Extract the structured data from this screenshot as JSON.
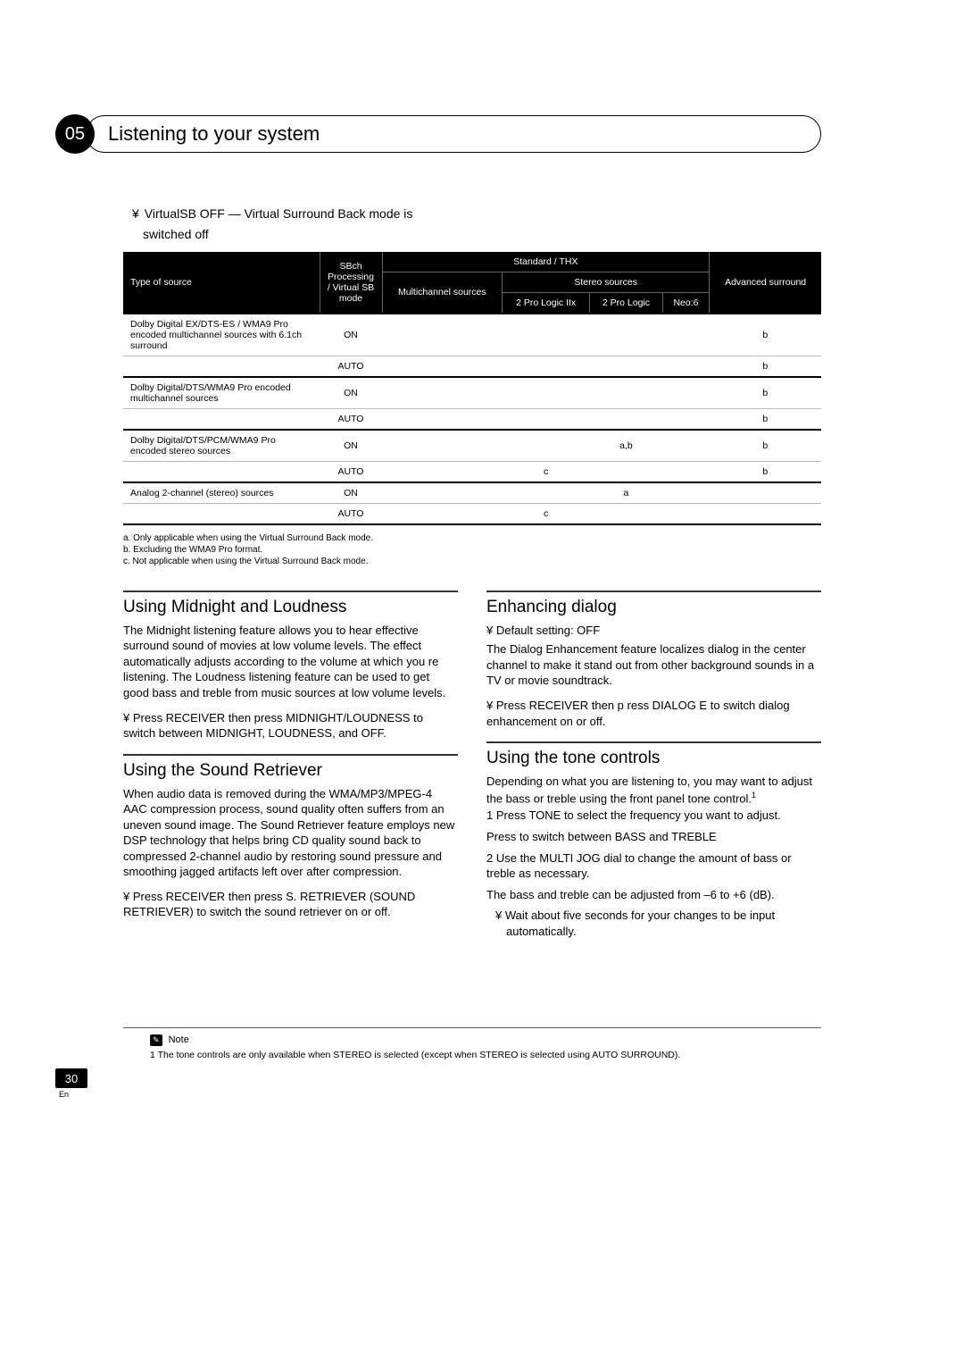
{
  "chapter": {
    "num": "05",
    "title": "Listening to your system"
  },
  "virtual_sb_off": {
    "bullet_sym": "¥",
    "line1": "VirtualSB OFF — Virtual Surround Back mode is",
    "line2": "switched off"
  },
  "table": {
    "headers": {
      "type": "Type of source",
      "sbch": "SBch Processing / Virtual SB mode",
      "std_thx": "Standard / THX",
      "multi": "Multichannel sources",
      "stereo": "Stereo sources",
      "pl2x": "2 Pro Logic IIx",
      "pl2": "2 Pro Logic",
      "neo6": "Neo:6",
      "adv": "Advanced surround"
    },
    "rows": [
      {
        "group_start": true,
        "src": "Dolby Digital EX/DTS-ES / WMA9 Pro encoded multichannel sources with 6.1ch surround",
        "mode": "ON",
        "multi": "",
        "pl2x": "",
        "pl2": "",
        "neo6": "",
        "adv": "b"
      },
      {
        "group_start": false,
        "src": "",
        "mode": "AUTO",
        "multi": "",
        "pl2x": "",
        "pl2": "",
        "neo6": "",
        "adv": "b"
      },
      {
        "group_start": true,
        "src": "Dolby Digital/DTS/WMA9 Pro encoded multichannel sources",
        "mode": "ON",
        "multi": "",
        "pl2x": "",
        "pl2": "",
        "neo6": "",
        "adv": "b"
      },
      {
        "group_start": false,
        "src": "",
        "mode": "AUTO",
        "multi": "",
        "pl2x": "",
        "pl2": "",
        "neo6": "",
        "adv": "b"
      },
      {
        "group_start": true,
        "src": "Dolby Digital/DTS/PCM/WMA9 Pro encoded stereo sources",
        "mode": "ON",
        "multi": "",
        "pl2x": "",
        "pl2": "a,b",
        "neo6": "",
        "adv": "b"
      },
      {
        "group_start": false,
        "src": "",
        "mode": "AUTO",
        "multi": "",
        "pl2x": "c",
        "pl2": "",
        "neo6": "",
        "adv": "b"
      },
      {
        "group_start": true,
        "src": "Analog 2-channel (stereo) sources",
        "mode": "ON",
        "multi": "",
        "pl2x": "",
        "pl2": "a",
        "neo6": "",
        "adv": ""
      },
      {
        "group_start": false,
        "src": "",
        "mode": "AUTO",
        "multi": "",
        "pl2x": "c",
        "pl2": "",
        "neo6": "",
        "adv": ""
      }
    ],
    "footnotes": {
      "a": "a. Only applicable when using the Virtual Surround Back mode.",
      "b": "b. Excluding the WMA9 Pro format.",
      "c": "c. Not applicable when using the Virtual Surround Back mode."
    }
  },
  "midnight": {
    "title": "Using Midnight and Loudness",
    "p1": "The Midnight listening feature allows you to hear effective surround sound of movies at low volume levels. The effect automatically adjusts according to the volume at which you re listening. The Loudness listening feature can be used to get good bass and treble from music sources at low volume levels.",
    "b1": "¥   Press RECEIVER then press MIDNIGHT/LOUDNESS to switch between MIDNIGHT, LOUDNESS, and OFF."
  },
  "retriever": {
    "title": "Using the Sound Retriever",
    "p1": "When audio data is removed during the WMA/MP3/MPEG-4 AAC compression process, sound quality often suffers from an uneven sound image. The Sound Retriever feature employs new DSP technology that helps bring CD quality sound back to compressed 2-channel audio by restoring sound pressure and smoothing jagged artifacts left over after compression.",
    "b1": "¥   Press RECEIVER then press  S. RETRIEVER (SOUND RETRIEVER) to switch the sound retriever on or off."
  },
  "dialog": {
    "title": "Enhancing dialog",
    "def": "¥ Default setting: OFF",
    "p1": "The Dialog Enhancement feature localizes dialog in the center channel to make it stand out from other background sounds in a TV or movie soundtrack.",
    "b1": "¥   Press RECEIVER then p ress DIALOG E to switch dialog enhancement on or off."
  },
  "tone": {
    "title": "Using the tone controls",
    "p1_a": "Depending on what you are listening to, you may want to adjust the bass or treble using the front panel tone control.",
    "s1": "1    Press TONE to select the frequency you want to adjust.",
    "s1b": "Press to switch between BASS and TREBLE",
    "s2": "2    Use the MULTI JOG dial to change the amount of bass or treble as necessary.",
    "s2b": "The bass and treble can be adjusted from –6 to +6 (dB).",
    "sub": "¥ Wait about five seconds for your changes to be input automatically."
  },
  "note": {
    "label": "Note",
    "text": "1 The tone controls are only available when STEREO is selected (except when STEREO is selected using AUTO SURROUND)."
  },
  "page": {
    "num": "30",
    "lang": "En"
  }
}
